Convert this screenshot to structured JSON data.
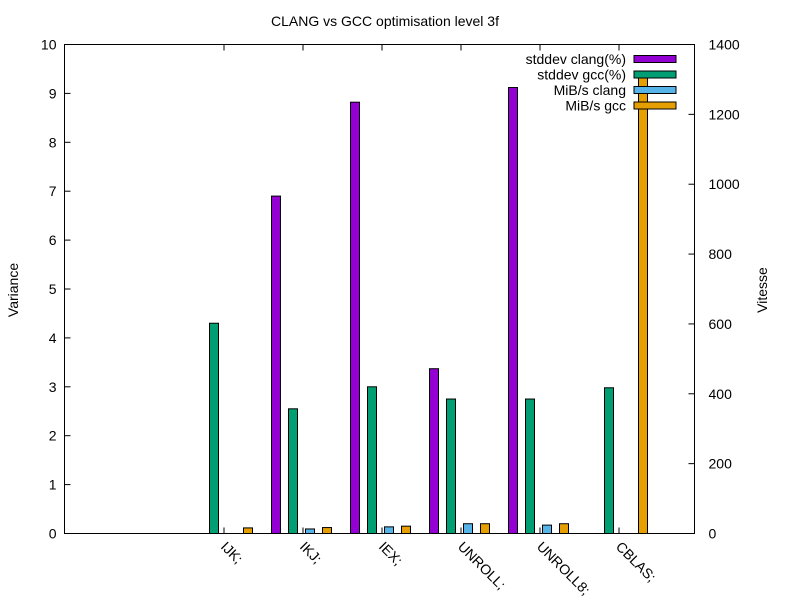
{
  "chart_data": {
    "type": "bar",
    "title": "CLANG vs GCC optimisation level 3f",
    "ylabel": "Variance",
    "y2label": "Vitesse",
    "ylim": [
      0,
      10
    ],
    "y2lim": [
      0,
      1400
    ],
    "yticks": [
      "0",
      "1",
      "2",
      "3",
      "4",
      "5",
      "6",
      "7",
      "8",
      "9",
      "10"
    ],
    "y2ticks": [
      "0",
      "200",
      "400",
      "600",
      "800",
      "1000",
      "1200",
      "1400"
    ],
    "categories": [
      "IJK;",
      "IKJ;",
      "IEX;",
      "UNROLL;",
      "UNROLL8;",
      "CBLAS;"
    ],
    "legend_position": "top-right",
    "series": [
      {
        "name": "stddev clang(%)",
        "axis": "left",
        "color": "#9400d3",
        "values": [
          0,
          6.9,
          8.82,
          3.37,
          9.12,
          0
        ]
      },
      {
        "name": "stddev gcc(%)",
        "axis": "left",
        "color": "#009e73",
        "values": [
          4.3,
          2.55,
          3.0,
          2.75,
          2.75,
          2.98
        ]
      },
      {
        "name": "MiB/s clang",
        "axis": "right",
        "color": "#56b4e9",
        "values": [
          0,
          13,
          19,
          28,
          24,
          0
        ]
      },
      {
        "name": "MiB/s gcc",
        "axis": "right",
        "color": "#e69f00",
        "values": [
          16,
          17,
          21,
          28,
          28,
          1318
        ]
      }
    ]
  }
}
